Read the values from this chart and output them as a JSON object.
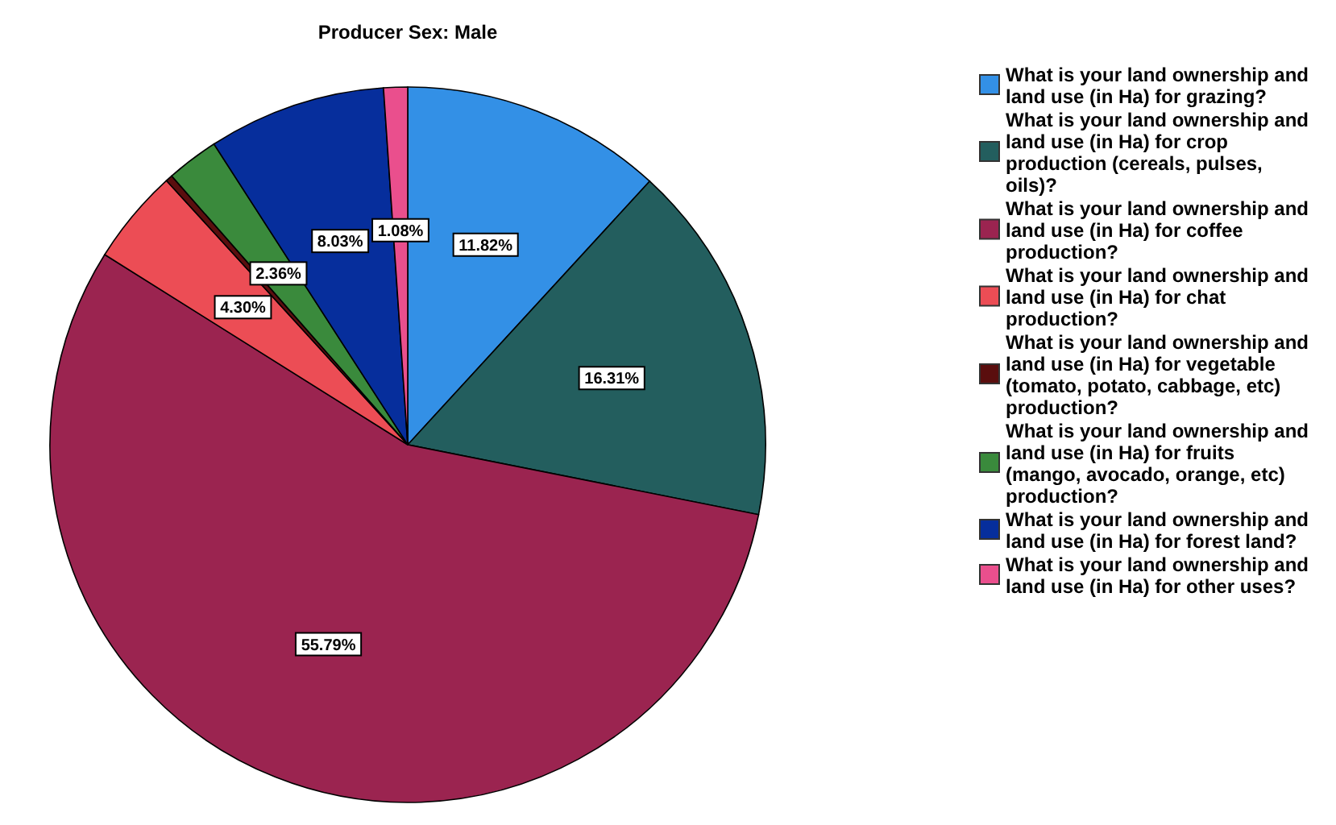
{
  "chart_data": {
    "type": "pie",
    "title": "Producer Sex: Male",
    "categories": [
      "What is your land ownership and land use (in Ha) for grazing?",
      "What is your land ownership and land use (in Ha) for crop production (cereals, pulses, oils)?",
      "What is your land ownership and land use (in Ha) for coffee production?",
      "What is your land ownership and land use (in Ha) for chat production?",
      "What is your land ownership and land use (in Ha) for vegetable (tomato, potato, cabbage, etc) production?",
      "What is your land ownership and land use (in Ha) for fruits (mango, avocado, orange, etc) production?",
      "What is your land ownership and land use (in Ha) for forest land?",
      "What is your land ownership and land use (in Ha) for other uses?"
    ],
    "values": [
      11.82,
      16.31,
      55.79,
      4.3,
      0.31,
      2.36,
      8.03,
      1.08
    ],
    "value_labels": [
      "11.82%",
      "16.31%",
      "55.79%",
      "4.30%",
      null,
      "2.36%",
      "8.03%",
      "1.08%"
    ],
    "colors": [
      "#3390e6",
      "#235e5e",
      "#9b2450",
      "#ec4d55",
      "#5a0e0e",
      "#3a8a3c",
      "#062e9c",
      "#ea4f8d"
    ],
    "legend": "right"
  }
}
